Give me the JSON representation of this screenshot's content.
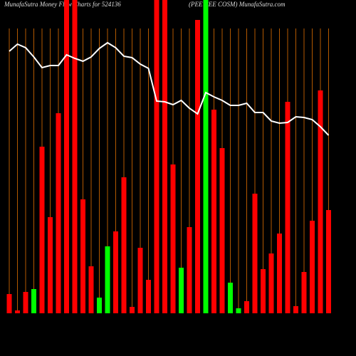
{
  "chart_data": {
    "type": "bar",
    "title": "MunafaSutra  Money Flow  Charts for 524136",
    "subtitle": "(PEE CEE COSM) MunafaSutra.com",
    "ylim": [
      0,
      440
    ],
    "series": [
      {
        "type": "bar",
        "values": [
          27,
          4,
          30,
          34,
          234,
          135,
          281,
          440,
          440,
          160,
          66,
          22,
          94,
          115,
          191,
          9,
          92,
          47,
          440,
          440,
          209,
          64,
          121,
          412,
          440,
          286,
          232,
          43,
          7,
          17,
          168,
          62,
          84,
          112,
          297,
          10,
          58,
          130,
          313,
          145
        ],
        "colors": [
          "#ff0000",
          "#ff0000",
          "#ff0000",
          "#00ff00",
          "#ff0000",
          "#ff0000",
          "#ff0000",
          "#ff0000",
          "#ff0000",
          "#ff0000",
          "#ff0000",
          "#00ff00",
          "#00ff00",
          "#ff0000",
          "#ff0000",
          "#ff0000",
          "#ff0000",
          "#ff0000",
          "#ff0000",
          "#ff0000",
          "#ff0000",
          "#00ff00",
          "#ff0000",
          "#ff0000",
          "#00ff00",
          "#ff0000",
          "#ff0000",
          "#00ff00",
          "#00ff00",
          "#ff0000",
          "#ff0000",
          "#ff0000",
          "#ff0000",
          "#ff0000",
          "#ff0000",
          "#ff0000",
          "#ff0000",
          "#ff0000",
          "#ff0000",
          "#ff0000"
        ]
      },
      {
        "type": "line",
        "color": "#ffffff",
        "values": [
          368,
          378,
          373,
          360,
          345,
          348,
          348,
          363,
          358,
          354,
          360,
          372,
          380,
          373,
          361,
          359,
          350,
          344,
          298,
          297,
          293,
          299,
          288,
          280,
          310,
          304,
          299,
          292,
          292,
          295,
          282,
          282,
          270,
          267,
          268,
          276,
          275,
          272,
          262,
          250
        ]
      }
    ],
    "gridline_color": "#b35900"
  }
}
